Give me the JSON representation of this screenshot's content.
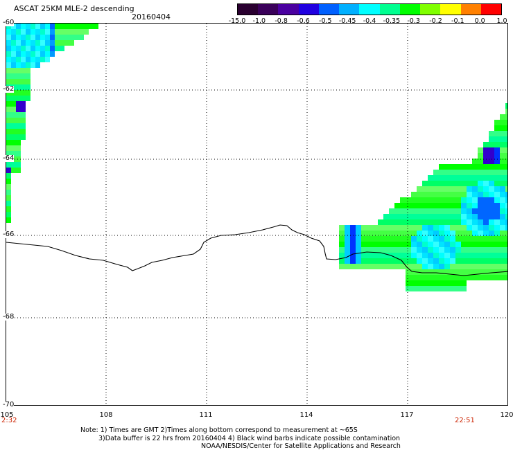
{
  "header": {
    "title": "ASCAT 25KM MLE-2 descending",
    "date": "20160404"
  },
  "colorbar": {
    "labels": [
      "-15.0",
      "-1.0",
      "-0.8",
      "-0.6",
      "-0.5",
      "-0.45",
      "-0.4",
      "-0.35",
      "-0.3",
      "-0.2",
      "-0.1",
      "0.0",
      "1.0"
    ],
    "colors": [
      "#2a0030",
      "#3a005a",
      "#4a00a0",
      "#2000e0",
      "#0060ff",
      "#00b0ff",
      "#00ffff",
      "#00ff90",
      "#00ff00",
      "#80ff00",
      "#ffff00",
      "#ff8000",
      "#ff0000"
    ]
  },
  "map": {
    "lat_labels": [
      "-60",
      "-62",
      "-64",
      "-66",
      "-68",
      "-70"
    ],
    "lon_labels": [
      "105",
      "108",
      "111",
      "114",
      "117",
      "120"
    ],
    "lat_range": [
      -70,
      -60
    ],
    "lon_range": [
      105,
      120
    ],
    "grid": true,
    "times": {
      "start": "2:32",
      "end": "22:51"
    }
  },
  "notes": {
    "line1": "Note: 1) Times are GMT 2)Times along bottom correspond to measurement at ~65S",
    "line2": "3)Data buffer is 22 hrs from 20160404 4) Black wind barbs indicate possible contamination",
    "line3": "NOAA/NESDIS/Center for Satellite Applications and Research"
  }
}
